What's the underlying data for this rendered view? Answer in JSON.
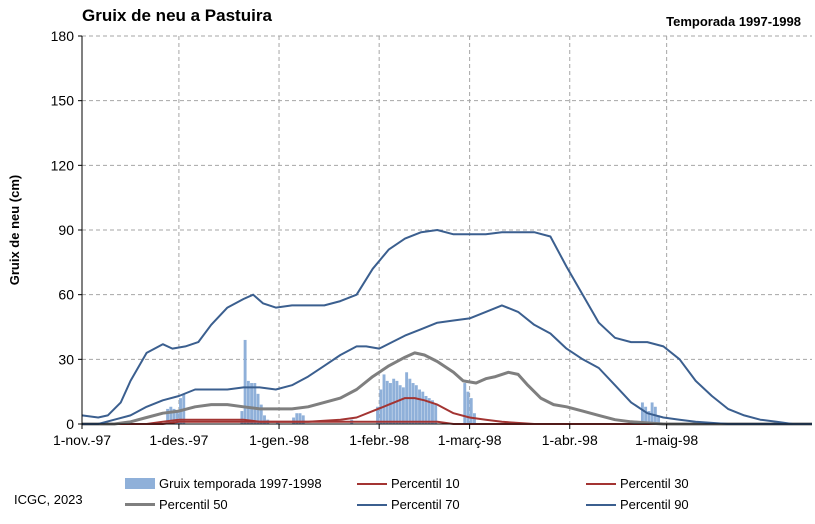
{
  "title": "Gruix de neu a Pastuira",
  "season_label": "Temporada 1997-1998",
  "footer": "ICGC, 2023",
  "colors": {
    "bars": "#8fb0d9",
    "p10": "#a33432",
    "p30": "#a33432",
    "p50": "#7f7f7f",
    "p70": "#3b5f8f",
    "p90": "#3b5f8f",
    "grid": "#a6a6a6"
  },
  "chart_data": {
    "type": "bar+line",
    "title": "Gruix de neu a Pastuira",
    "ylabel": "Gruix de neu (cm)",
    "ylim": [
      0,
      180
    ],
    "yticks": [
      "0",
      "30",
      "60",
      "90",
      "120",
      "150",
      "180"
    ],
    "xlim": [
      0,
      226
    ],
    "x_unit": "days since 1-nov.-97",
    "xticks": [
      {
        "day": 0,
        "label": "1-nov.-97"
      },
      {
        "day": 30,
        "label": "1-des.-97"
      },
      {
        "day": 61,
        "label": "1-gen.-98"
      },
      {
        "day": 92,
        "label": "1-febr.-98"
      },
      {
        "day": 120,
        "label": "1-març-98"
      },
      {
        "day": 151,
        "label": "1-abr.-98"
      },
      {
        "day": 181,
        "label": "1-maig-98"
      }
    ],
    "legend": {
      "bars": "Gruix temporada 1997-1998",
      "p10": "Percentil 10",
      "p30": "Percentil 30",
      "p50": "Percentil 50",
      "p70": "Percentil 70",
      "p90": "Percentil 90"
    },
    "bars": [
      [
        26,
        7
      ],
      [
        27,
        8
      ],
      [
        28,
        7
      ],
      [
        29,
        6
      ],
      [
        30,
        12
      ],
      [
        31,
        14
      ],
      [
        49,
        6
      ],
      [
        50,
        39
      ],
      [
        51,
        20
      ],
      [
        52,
        19
      ],
      [
        53,
        19
      ],
      [
        54,
        14
      ],
      [
        55,
        9
      ],
      [
        56,
        4
      ],
      [
        57,
        2
      ],
      [
        60,
        1
      ],
      [
        65,
        3
      ],
      [
        66,
        5
      ],
      [
        67,
        5
      ],
      [
        68,
        4
      ],
      [
        83,
        2
      ],
      [
        91,
        8
      ],
      [
        92,
        16
      ],
      [
        93,
        23
      ],
      [
        94,
        20
      ],
      [
        95,
        19
      ],
      [
        96,
        21
      ],
      [
        97,
        20
      ],
      [
        98,
        18
      ],
      [
        99,
        17
      ],
      [
        100,
        24
      ],
      [
        101,
        21
      ],
      [
        102,
        19
      ],
      [
        103,
        18
      ],
      [
        104,
        16
      ],
      [
        105,
        15
      ],
      [
        106,
        13
      ],
      [
        107,
        12
      ],
      [
        108,
        11
      ],
      [
        109,
        9
      ],
      [
        118,
        19
      ],
      [
        119,
        15
      ],
      [
        120,
        12
      ],
      [
        121,
        5
      ],
      [
        133,
        1
      ],
      [
        173,
        10
      ],
      [
        174,
        8
      ],
      [
        175,
        6
      ],
      [
        176,
        10
      ],
      [
        177,
        8
      ],
      [
        178,
        4
      ]
    ],
    "series": [
      {
        "key": "p10",
        "name": "Percentil 10",
        "points": [
          [
            0,
            0
          ],
          [
            25,
            0
          ],
          [
            30,
            1
          ],
          [
            40,
            1
          ],
          [
            60,
            1
          ],
          [
            90,
            1
          ],
          [
            100,
            1
          ],
          [
            110,
            1
          ],
          [
            115,
            0
          ],
          [
            226,
            0
          ]
        ]
      },
      {
        "key": "p30",
        "name": "Percentil 30",
        "points": [
          [
            0,
            0
          ],
          [
            20,
            0
          ],
          [
            25,
            1
          ],
          [
            30,
            2
          ],
          [
            35,
            2
          ],
          [
            40,
            2
          ],
          [
            50,
            2
          ],
          [
            55,
            1
          ],
          [
            60,
            1
          ],
          [
            70,
            1
          ],
          [
            80,
            2
          ],
          [
            85,
            3
          ],
          [
            90,
            6
          ],
          [
            95,
            9
          ],
          [
            100,
            12
          ],
          [
            103,
            12
          ],
          [
            106,
            11
          ],
          [
            110,
            9
          ],
          [
            115,
            5
          ],
          [
            120,
            3
          ],
          [
            125,
            2
          ],
          [
            130,
            1
          ],
          [
            140,
            0
          ],
          [
            226,
            0
          ]
        ]
      },
      {
        "key": "p50",
        "name": "Percentil 50",
        "points": [
          [
            0,
            0
          ],
          [
            10,
            0
          ],
          [
            15,
            1
          ],
          [
            20,
            3
          ],
          [
            25,
            5
          ],
          [
            30,
            6
          ],
          [
            35,
            8
          ],
          [
            40,
            9
          ],
          [
            45,
            9
          ],
          [
            50,
            8
          ],
          [
            55,
            7
          ],
          [
            60,
            7
          ],
          [
            65,
            7
          ],
          [
            70,
            8
          ],
          [
            75,
            10
          ],
          [
            80,
            12
          ],
          [
            85,
            16
          ],
          [
            90,
            22
          ],
          [
            95,
            27
          ],
          [
            100,
            31
          ],
          [
            103,
            33
          ],
          [
            106,
            32
          ],
          [
            110,
            29
          ],
          [
            115,
            24
          ],
          [
            118,
            20
          ],
          [
            122,
            19
          ],
          [
            125,
            21
          ],
          [
            128,
            22
          ],
          [
            132,
            24
          ],
          [
            135,
            23
          ],
          [
            138,
            18
          ],
          [
            142,
            12
          ],
          [
            146,
            9
          ],
          [
            150,
            8
          ],
          [
            155,
            6
          ],
          [
            160,
            4
          ],
          [
            165,
            2
          ],
          [
            170,
            1
          ],
          [
            180,
            0
          ],
          [
            226,
            0
          ]
        ]
      },
      {
        "key": "p70",
        "name": "Percentil 70",
        "points": [
          [
            0,
            0
          ],
          [
            5,
            0
          ],
          [
            10,
            2
          ],
          [
            15,
            4
          ],
          [
            20,
            8
          ],
          [
            25,
            11
          ],
          [
            30,
            13
          ],
          [
            35,
            16
          ],
          [
            40,
            16
          ],
          [
            45,
            16
          ],
          [
            50,
            17
          ],
          [
            55,
            17
          ],
          [
            60,
            16
          ],
          [
            65,
            18
          ],
          [
            70,
            22
          ],
          [
            75,
            27
          ],
          [
            80,
            32
          ],
          [
            85,
            36
          ],
          [
            88,
            36
          ],
          [
            92,
            35
          ],
          [
            96,
            38
          ],
          [
            100,
            41
          ],
          [
            105,
            44
          ],
          [
            110,
            47
          ],
          [
            115,
            48
          ],
          [
            120,
            49
          ],
          [
            125,
            52
          ],
          [
            130,
            55
          ],
          [
            135,
            52
          ],
          [
            140,
            46
          ],
          [
            145,
            42
          ],
          [
            150,
            35
          ],
          [
            155,
            30
          ],
          [
            160,
            26
          ],
          [
            165,
            18
          ],
          [
            170,
            10
          ],
          [
            175,
            5
          ],
          [
            180,
            3
          ],
          [
            185,
            2
          ],
          [
            190,
            1
          ],
          [
            200,
            0
          ],
          [
            226,
            0
          ]
        ]
      },
      {
        "key": "p90",
        "name": "Percentil 90",
        "points": [
          [
            0,
            4
          ],
          [
            5,
            3
          ],
          [
            8,
            4
          ],
          [
            12,
            10
          ],
          [
            15,
            20
          ],
          [
            20,
            33
          ],
          [
            25,
            37
          ],
          [
            28,
            35
          ],
          [
            32,
            36
          ],
          [
            36,
            38
          ],
          [
            40,
            46
          ],
          [
            45,
            54
          ],
          [
            50,
            58
          ],
          [
            53,
            60
          ],
          [
            56,
            56
          ],
          [
            60,
            54
          ],
          [
            65,
            55
          ],
          [
            70,
            55
          ],
          [
            75,
            55
          ],
          [
            80,
            57
          ],
          [
            85,
            60
          ],
          [
            90,
            72
          ],
          [
            95,
            81
          ],
          [
            100,
            86
          ],
          [
            105,
            89
          ],
          [
            110,
            90
          ],
          [
            115,
            88
          ],
          [
            120,
            88
          ],
          [
            125,
            88
          ],
          [
            130,
            89
          ],
          [
            135,
            89
          ],
          [
            140,
            89
          ],
          [
            145,
            87
          ],
          [
            150,
            73
          ],
          [
            155,
            60
          ],
          [
            160,
            47
          ],
          [
            165,
            40
          ],
          [
            170,
            38
          ],
          [
            175,
            38
          ],
          [
            180,
            36
          ],
          [
            185,
            30
          ],
          [
            190,
            20
          ],
          [
            195,
            13
          ],
          [
            200,
            7
          ],
          [
            205,
            4
          ],
          [
            210,
            2
          ],
          [
            215,
            1
          ],
          [
            220,
            0
          ],
          [
            226,
            0
          ]
        ]
      }
    ]
  }
}
